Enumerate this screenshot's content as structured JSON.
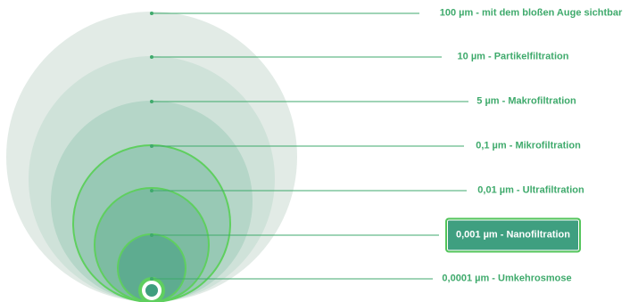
{
  "levels": [
    {
      "label": "100 µm - mit dem bloßen Auge sichtbar",
      "highlighted": false,
      "fill": "#e2ebe6"
    },
    {
      "label": "10 µm - Partikelfiltration",
      "highlighted": false,
      "fill": "#cfe2d9"
    },
    {
      "label": "5 µm - Makrofiltration",
      "highlighted": false,
      "fill": "#b5d6c8"
    },
    {
      "label": "0,1 µm - Mikrofiltration",
      "highlighted": false,
      "fill": "#98c9b5"
    },
    {
      "label": "0,01 µm - Ultrafiltration",
      "highlighted": false,
      "fill": "#7dbca2"
    },
    {
      "label": "0,001 µm - Nanofiltration",
      "highlighted": true,
      "fill": "#5eac90"
    },
    {
      "label": "0,0001 µm - Umkehrosmose",
      "highlighted": false,
      "fill": "#3f9e7e"
    }
  ],
  "colors": {
    "line": "#3faa6c",
    "circle_stroke": "#5fcf5f",
    "label_text": "#3faa6c",
    "highlight_bg": "#3f9f80",
    "highlight_border": "#52c45a"
  }
}
